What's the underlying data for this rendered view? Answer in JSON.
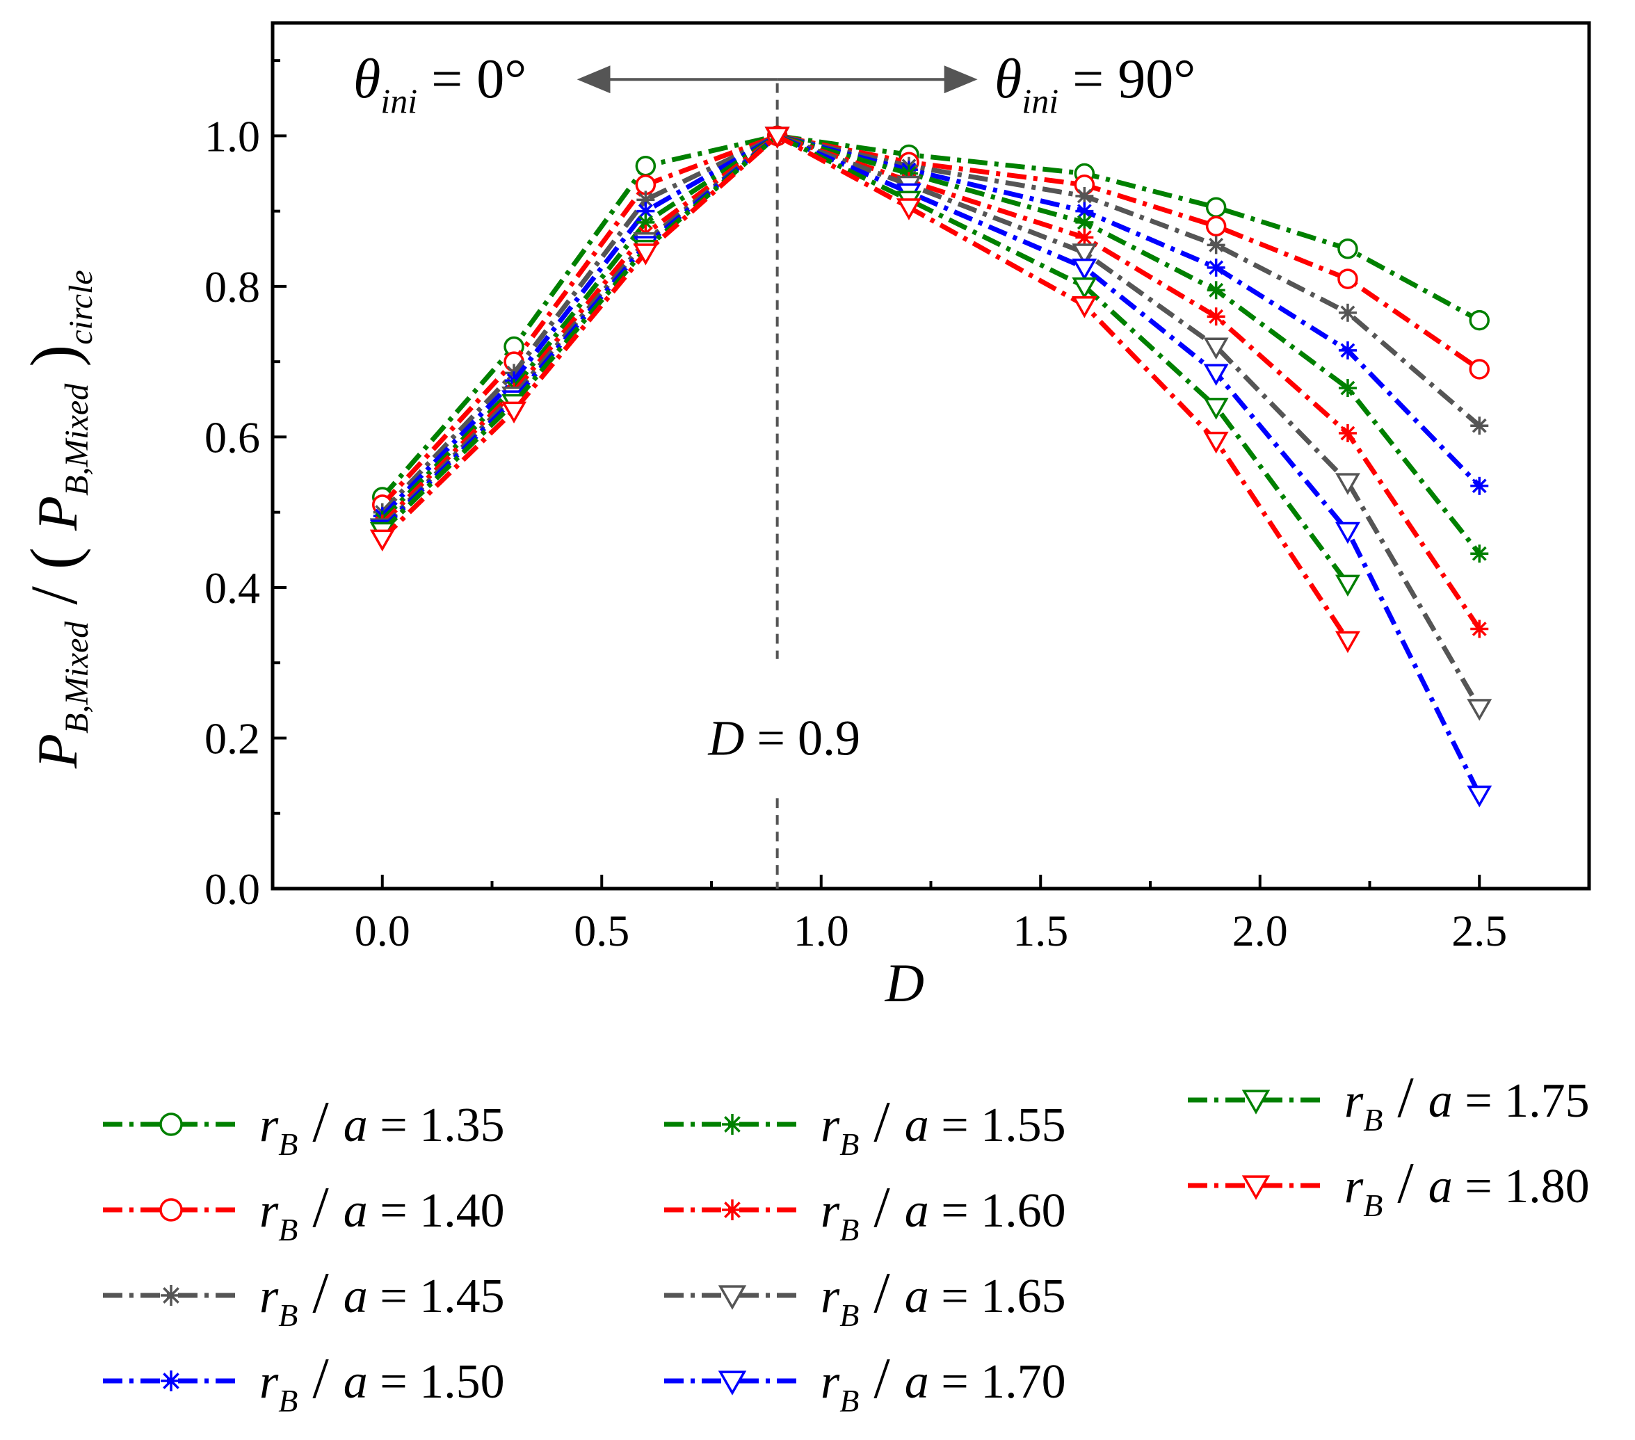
{
  "chart_data": {
    "type": "line",
    "xlabel": "D",
    "ylabel": "P_{B,Mixed} / (P_{B,Mixed})_{circle}",
    "ylabel_parts": {
      "p": "P",
      "sub": "B,Mixed",
      "sub2": "circle"
    },
    "xlim": [
      -0.25,
      2.75
    ],
    "ylim": [
      0.0,
      1.15
    ],
    "xticks": [
      0.0,
      0.5,
      1.0,
      1.5,
      2.0,
      2.5
    ],
    "xtick_labels": [
      "0.0",
      "0.5",
      "1.0",
      "1.5",
      "2.0",
      "2.5"
    ],
    "yticks": [
      0.0,
      0.2,
      0.4,
      0.6,
      0.8,
      1.0
    ],
    "ytick_labels": [
      "0.0",
      "0.2",
      "0.4",
      "0.6",
      "0.8",
      "1.0"
    ],
    "grid": false,
    "legend_position": "bottom",
    "annotations": {
      "left_theta": {
        "symbol": "θ",
        "sub": "ini",
        "value": "= 0°"
      },
      "right_theta": {
        "symbol": "θ",
        "sub": "ini",
        "value": "= 90°"
      },
      "vline": {
        "x": 0.9,
        "label_var": "D",
        "label_value": "= 0.9"
      }
    },
    "x": [
      0.0,
      0.3,
      0.6,
      0.9,
      1.2,
      1.6,
      1.9,
      2.2,
      2.5
    ],
    "series": [
      {
        "name": "1.35",
        "color": "#008000",
        "marker": "circle",
        "values": [
          0.52,
          0.72,
          0.96,
          1.0,
          0.975,
          0.95,
          0.905,
          0.85,
          0.755
        ]
      },
      {
        "name": "1.40",
        "color": "#ff0000",
        "marker": "circle",
        "values": [
          0.51,
          0.7,
          0.935,
          1.0,
          0.965,
          0.935,
          0.88,
          0.81,
          0.69
        ]
      },
      {
        "name": "1.45",
        "color": "#555555",
        "marker": "asterisk",
        "values": [
          0.5,
          0.685,
          0.915,
          1.0,
          0.96,
          0.92,
          0.855,
          0.765,
          0.615
        ]
      },
      {
        "name": "1.50",
        "color": "#0000ff",
        "marker": "asterisk",
        "values": [
          0.495,
          0.675,
          0.9,
          1.0,
          0.955,
          0.9,
          0.825,
          0.715,
          0.535
        ]
      },
      {
        "name": "1.55",
        "color": "#008000",
        "marker": "asterisk",
        "values": [
          0.49,
          0.665,
          0.885,
          1.0,
          0.95,
          0.885,
          0.795,
          0.665,
          0.445
        ]
      },
      {
        "name": "1.60",
        "color": "#ff0000",
        "marker": "asterisk",
        "values": [
          0.485,
          0.66,
          0.87,
          1.0,
          0.94,
          0.865,
          0.76,
          0.605,
          0.345
        ]
      },
      {
        "name": "1.65",
        "color": "#555555",
        "marker": "triangle",
        "values": [
          0.48,
          0.655,
          0.86,
          1.0,
          0.935,
          0.845,
          0.72,
          0.54,
          0.24
        ]
      },
      {
        "name": "1.70",
        "color": "#0000ff",
        "marker": "triangle",
        "values": [
          0.478,
          0.65,
          0.855,
          1.0,
          0.925,
          0.825,
          0.685,
          0.475,
          0.125
        ]
      },
      {
        "name": "1.75",
        "color": "#008000",
        "marker": "triangle",
        "values": [
          0.475,
          0.645,
          0.85,
          1.0,
          0.915,
          0.8,
          0.64,
          0.405,
          null
        ]
      },
      {
        "name": "1.80",
        "color": "#ff0000",
        "marker": "triangle",
        "values": [
          0.465,
          0.635,
          0.845,
          1.0,
          0.905,
          0.775,
          0.595,
          0.33,
          null
        ]
      }
    ],
    "legend_text": {
      "var": "r",
      "sub": "B",
      "denominator": "a",
      "equals": "="
    }
  }
}
